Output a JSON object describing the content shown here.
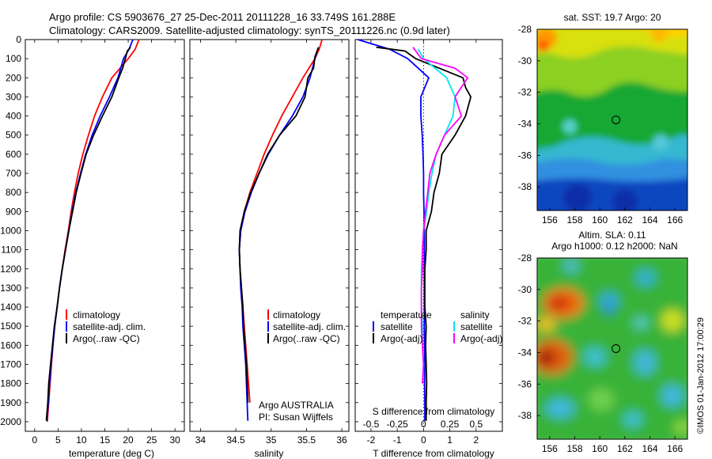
{
  "figure": {
    "title_line1": "Argo profile: CS 5903676_27 25-Dec-2011 20111228_16 33.749S 161.288E",
    "title_line2": "Climatology: CARS2009. Satellite-adjusted climatology: synTS_20111226.nc (0.9d later)",
    "credit": "©IMOS 01-Jan-2012 17:00:29",
    "argo_name": "Argo AUSTRALIA",
    "pi_name": "PI: Susan Wijffels"
  },
  "colors": {
    "climatology": "#ff0000",
    "satellite": "#0000ff",
    "argo": "#000000",
    "sat_salinity": "#00e5ee",
    "argo_salinity": "#ff00ff"
  },
  "chart_data": [
    {
      "type": "line",
      "xlabel": "temperature (deg C)",
      "ylabel": "",
      "xlim": [
        -2,
        32
      ],
      "ylim": [
        2050,
        0
      ],
      "xticks": [
        "0",
        "5",
        "10",
        "15",
        "20",
        "25",
        "30"
      ],
      "yticks": [
        "0",
        "100",
        "200",
        "300",
        "400",
        "500",
        "600",
        "700",
        "800",
        "900",
        "1000",
        "1100",
        "1200",
        "1300",
        "1400",
        "1500",
        "1600",
        "1700",
        "1800",
        "1900",
        "2000"
      ],
      "legend": [
        "climatology",
        "satellite-adj. clim.",
        "Argo(..raw -QC)"
      ],
      "series": [
        {
          "name": "climatology",
          "color_key": "climatology",
          "points": [
            [
              22.3,
              0
            ],
            [
              21.5,
              50
            ],
            [
              20,
              100
            ],
            [
              16.5,
              200
            ],
            [
              14.5,
              300
            ],
            [
              12.8,
              400
            ],
            [
              11.5,
              500
            ],
            [
              10.3,
              600
            ],
            [
              9.3,
              700
            ],
            [
              8.5,
              800
            ],
            [
              7.8,
              900
            ],
            [
              7.2,
              1000
            ],
            [
              6.5,
              1100
            ],
            [
              5.9,
              1200
            ],
            [
              5.3,
              1300
            ],
            [
              4.8,
              1400
            ],
            [
              4.3,
              1500
            ],
            [
              3.9,
              1600
            ],
            [
              3.6,
              1700
            ],
            [
              3.3,
              1800
            ],
            [
              3,
              1900
            ],
            [
              2.7,
              2000
            ]
          ]
        },
        {
          "name": "satellite-adj. clim.",
          "color_key": "satellite",
          "points": [
            [
              21,
              0
            ],
            [
              20.2,
              50
            ],
            [
              19,
              100
            ],
            [
              17.8,
              200
            ],
            [
              16,
              300
            ],
            [
              14,
              400
            ],
            [
              12.3,
              500
            ],
            [
              10.9,
              600
            ],
            [
              9.8,
              700
            ],
            [
              8.8,
              800
            ],
            [
              8,
              900
            ],
            [
              7.3,
              1000
            ],
            [
              6.6,
              1100
            ],
            [
              5.9,
              1200
            ],
            [
              5.3,
              1300
            ],
            [
              4.8,
              1400
            ],
            [
              4.3,
              1500
            ],
            [
              3.9,
              1600
            ],
            [
              3.5,
              1700
            ],
            [
              3.2,
              1800
            ],
            [
              2.9,
              1900
            ],
            [
              2.6,
              1995
            ]
          ]
        },
        {
          "name": "Argo(..raw -QC)",
          "color_key": "argo",
          "points": [
            [
              20.5,
              40
            ],
            [
              19.8,
              60
            ],
            [
              19.5,
              90
            ],
            [
              18.8,
              150
            ],
            [
              18,
              200
            ],
            [
              16.5,
              300
            ],
            [
              14.5,
              400
            ],
            [
              12.6,
              500
            ],
            [
              11,
              600
            ],
            [
              9.9,
              700
            ],
            [
              8.9,
              800
            ],
            [
              8.1,
              900
            ],
            [
              7.3,
              1000
            ],
            [
              6.6,
              1100
            ],
            [
              5.9,
              1200
            ],
            [
              5.3,
              1300
            ],
            [
              4.8,
              1400
            ],
            [
              4.2,
              1500
            ],
            [
              3.8,
              1600
            ],
            [
              3.4,
              1700
            ],
            [
              3,
              1800
            ],
            [
              2.8,
              1900
            ],
            [
              2.5,
              1995
            ]
          ]
        }
      ]
    },
    {
      "type": "line",
      "xlabel": "salinity",
      "ylabel": "",
      "xlim": [
        33.85,
        36.1
      ],
      "ylim": [
        2050,
        0
      ],
      "xticks": [
        "34",
        "34.5",
        "35",
        "35.5",
        "36"
      ],
      "legend": [
        "climatology",
        "satellite-adj. clim.",
        "Argo(..raw -QC)"
      ],
      "series": [
        {
          "name": "climatology",
          "color_key": "climatology",
          "points": [
            [
              35.72,
              0
            ],
            [
              35.68,
              50
            ],
            [
              35.62,
              100
            ],
            [
              35.45,
              200
            ],
            [
              35.3,
              300
            ],
            [
              35.15,
              400
            ],
            [
              35.02,
              500
            ],
            [
              34.9,
              600
            ],
            [
              34.8,
              700
            ],
            [
              34.7,
              800
            ],
            [
              34.62,
              900
            ],
            [
              34.57,
              1000
            ],
            [
              34.55,
              1100
            ],
            [
              34.56,
              1200
            ],
            [
              34.58,
              1300
            ],
            [
              34.6,
              1400
            ],
            [
              34.62,
              1500
            ],
            [
              34.64,
              1600
            ],
            [
              34.66,
              1700
            ],
            [
              34.68,
              1800
            ],
            [
              34.7,
              1900
            ]
          ]
        },
        {
          "name": "satellite-adj. clim.",
          "color_key": "satellite",
          "points": [
            [
              35.66,
              50
            ],
            [
              35.62,
              100
            ],
            [
              35.55,
              200
            ],
            [
              35.45,
              300
            ],
            [
              35.3,
              400
            ],
            [
              35.12,
              500
            ],
            [
              34.96,
              600
            ],
            [
              34.83,
              700
            ],
            [
              34.72,
              800
            ],
            [
              34.63,
              900
            ],
            [
              34.57,
              1000
            ],
            [
              34.55,
              1100
            ],
            [
              34.56,
              1200
            ],
            [
              34.57,
              1300
            ],
            [
              34.59,
              1400
            ],
            [
              34.6,
              1500
            ],
            [
              34.62,
              1600
            ],
            [
              34.64,
              1700
            ],
            [
              34.65,
              1800
            ],
            [
              34.66,
              1900
            ],
            [
              34.67,
              1995
            ]
          ]
        },
        {
          "name": "Argo(..raw -QC)",
          "color_key": "argo",
          "points": [
            [
              35.67,
              40
            ],
            [
              35.62,
              90
            ],
            [
              35.6,
              150
            ],
            [
              35.52,
              200
            ],
            [
              35.48,
              300
            ],
            [
              35.35,
              400
            ],
            [
              35.12,
              500
            ],
            [
              34.95,
              600
            ],
            [
              34.83,
              700
            ],
            [
              34.71,
              800
            ],
            [
              34.62,
              900
            ],
            [
              34.56,
              1000
            ],
            [
              34.55,
              1100
            ],
            [
              34.56,
              1200
            ],
            [
              34.58,
              1300
            ],
            [
              34.6,
              1400
            ],
            [
              34.61,
              1500
            ],
            [
              34.63,
              1600
            ],
            [
              34.65,
              1700
            ],
            [
              34.66,
              1800
            ],
            [
              34.67,
              1900
            ]
          ]
        }
      ]
    },
    {
      "type": "line",
      "xlabel": "T difference from climatology",
      "xlabel_top": "S difference from climatology",
      "ylabel": "",
      "xlim": [
        -2.6,
        3.0
      ],
      "ylim": [
        2050,
        0
      ],
      "xticks": [
        "-2",
        "-1",
        "0",
        "1",
        "2"
      ],
      "xticks_top": [
        "-0.5",
        "-0.25",
        "0",
        "0.25",
        "0.5"
      ],
      "legend_headers": [
        "temperature",
        "salinity"
      ],
      "legend_left": [
        "satellite",
        "Argo(-adj)"
      ],
      "legend_right": [
        "satellite",
        "Argo(-adj)"
      ],
      "series": [
        {
          "name": "satellite",
          "group": "temperature",
          "color_key": "satellite",
          "points": [
            [
              -2.5,
              0
            ],
            [
              -1.3,
              50
            ],
            [
              -0.6,
              100
            ],
            [
              0.2,
              200
            ],
            [
              -0.1,
              300
            ],
            [
              -0.1,
              400
            ],
            [
              -0.05,
              500
            ],
            [
              -0.02,
              600
            ],
            [
              0,
              700
            ],
            [
              0,
              800
            ],
            [
              0.02,
              900
            ],
            [
              0.03,
              1000
            ],
            [
              0.03,
              1100
            ],
            [
              0.03,
              1200
            ],
            [
              0.03,
              1300
            ],
            [
              0.03,
              1400
            ],
            [
              0.03,
              1500
            ],
            [
              0.04,
              1600
            ],
            [
              0.05,
              1700
            ],
            [
              0.04,
              1800
            ],
            [
              0.05,
              1900
            ],
            [
              0.05,
              1995
            ]
          ]
        },
        {
          "name": "Argo(-adj)",
          "group": "temperature",
          "color_key": "argo",
          "points": [
            [
              -1.8,
              40
            ],
            [
              -0.7,
              60
            ],
            [
              -0.3,
              100
            ],
            [
              1.5,
              200
            ],
            [
              1.6,
              250
            ],
            [
              1.8,
              300
            ],
            [
              1.6,
              400
            ],
            [
              1.2,
              500
            ],
            [
              0.7,
              600
            ],
            [
              0.6,
              700
            ],
            [
              0.4,
              800
            ],
            [
              0.3,
              900
            ],
            [
              0.1,
              1000
            ],
            [
              0.1,
              1100
            ],
            [
              0.05,
              1200
            ],
            [
              0.05,
              1300
            ],
            [
              0.05,
              1400
            ],
            [
              0.1,
              1500
            ],
            [
              0.08,
              1600
            ],
            [
              0.1,
              1700
            ],
            [
              0.12,
              1800
            ],
            [
              0.1,
              1900
            ],
            [
              0.1,
              1995
            ]
          ]
        },
        {
          "name": "satellite",
          "group": "salinity",
          "color_key": "sat_salinity",
          "points": [
            [
              -0.05,
              50
            ],
            [
              0,
              100
            ],
            [
              0.22,
              200
            ],
            [
              0.3,
              300
            ],
            [
              0.28,
              400
            ],
            [
              0.2,
              500
            ],
            [
              0.12,
              600
            ],
            [
              0.08,
              700
            ],
            [
              0.05,
              800
            ],
            [
              0.03,
              900
            ],
            [
              0,
              1000
            ],
            [
              -0.01,
              1100
            ],
            [
              -0.02,
              1200
            ],
            [
              -0.02,
              1300
            ],
            [
              -0.02,
              1400
            ],
            [
              -0.01,
              1500
            ],
            [
              -0.01,
              1600
            ],
            [
              0,
              1700
            ],
            [
              -0.01,
              1800
            ]
          ]
        },
        {
          "name": "Argo(-adj)",
          "group": "salinity",
          "color_key": "argo_salinity",
          "points": [
            [
              -0.1,
              40
            ],
            [
              -0.02,
              100
            ],
            [
              0.3,
              150
            ],
            [
              0.42,
              200
            ],
            [
              0.3,
              300
            ],
            [
              0.36,
              400
            ],
            [
              0.2,
              500
            ],
            [
              0.12,
              600
            ],
            [
              0.06,
              700
            ],
            [
              0.04,
              800
            ],
            [
              0.02,
              900
            ],
            [
              0,
              1000
            ],
            [
              -0.01,
              1100
            ],
            [
              -0.01,
              1200
            ],
            [
              -0.02,
              1300
            ],
            [
              -0.02,
              1400
            ],
            [
              -0.02,
              1500
            ],
            [
              -0.01,
              1600
            ],
            [
              0,
              1700
            ],
            [
              -0.01,
              1800
            ]
          ]
        }
      ]
    },
    {
      "type": "heatmap",
      "title": "sat. SST: 19.7 Argo: 20",
      "xlim": [
        155,
        167
      ],
      "ylim": [
        -39.5,
        -28
      ],
      "xticks": [
        "156",
        "158",
        "160",
        "162",
        "164",
        "166"
      ],
      "yticks": [
        "-28",
        "-30",
        "-32",
        "-34",
        "-36",
        "-38"
      ],
      "marker": [
        161.288,
        -33.749
      ]
    },
    {
      "type": "heatmap",
      "title": "Altim. SLA: 0.11",
      "subtitle": "Argo h1000: 0.12 h2000: NaN",
      "xlim": [
        155,
        167
      ],
      "ylim": [
        -39.5,
        -28
      ],
      "xticks": [
        "156",
        "158",
        "160",
        "162",
        "164",
        "166"
      ],
      "yticks": [
        "-28",
        "-30",
        "-32",
        "-34",
        "-36",
        "-38"
      ],
      "marker": [
        161.288,
        -33.749
      ]
    }
  ]
}
